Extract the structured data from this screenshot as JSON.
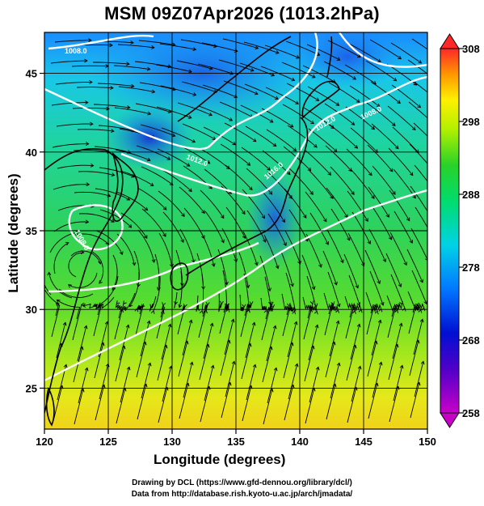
{
  "title": "MSM 09Z07Apr2026 (1013.2hPa)",
  "credits": {
    "line1": "Drawing by DCL (https://www.gfd-dennou.org/library/dcl/)",
    "line2": "Data from http://database.rish.kyoto-u.ac.jp/arch/jmadata/"
  },
  "chart_data": {
    "type": "heatmap",
    "title": "MSM 09Z07Apr2026 (1013.2hPa)",
    "xlabel": "Longitude (degrees)",
    "ylabel": "Latitude  (degrees)",
    "xlim": [
      120,
      150
    ],
    "ylim": [
      22.4,
      47.6
    ],
    "x_ticks": [
      "120",
      "125",
      "130",
      "135",
      "140",
      "145",
      "150"
    ],
    "y_ticks": [
      "25",
      "30",
      "35",
      "40",
      "45"
    ],
    "grid": true,
    "overlays": [
      "streamlines",
      "isobars (white contours)",
      "coastlines"
    ],
    "colorbar": {
      "min": 258,
      "max": 308,
      "ticks": [
        "258",
        "268",
        "278",
        "288",
        "298",
        "308"
      ],
      "colors": [
        "#c800c8",
        "#0000c8",
        "#00c8ff",
        "#00e066",
        "#e0ff00",
        "#ff8000",
        "#ff2020"
      ],
      "extend": "both"
    },
    "isobar_labels": [
      "1008.0",
      "1012.0",
      "1008.0",
      "1008.0",
      "1012.0",
      "1016.0"
    ]
  }
}
